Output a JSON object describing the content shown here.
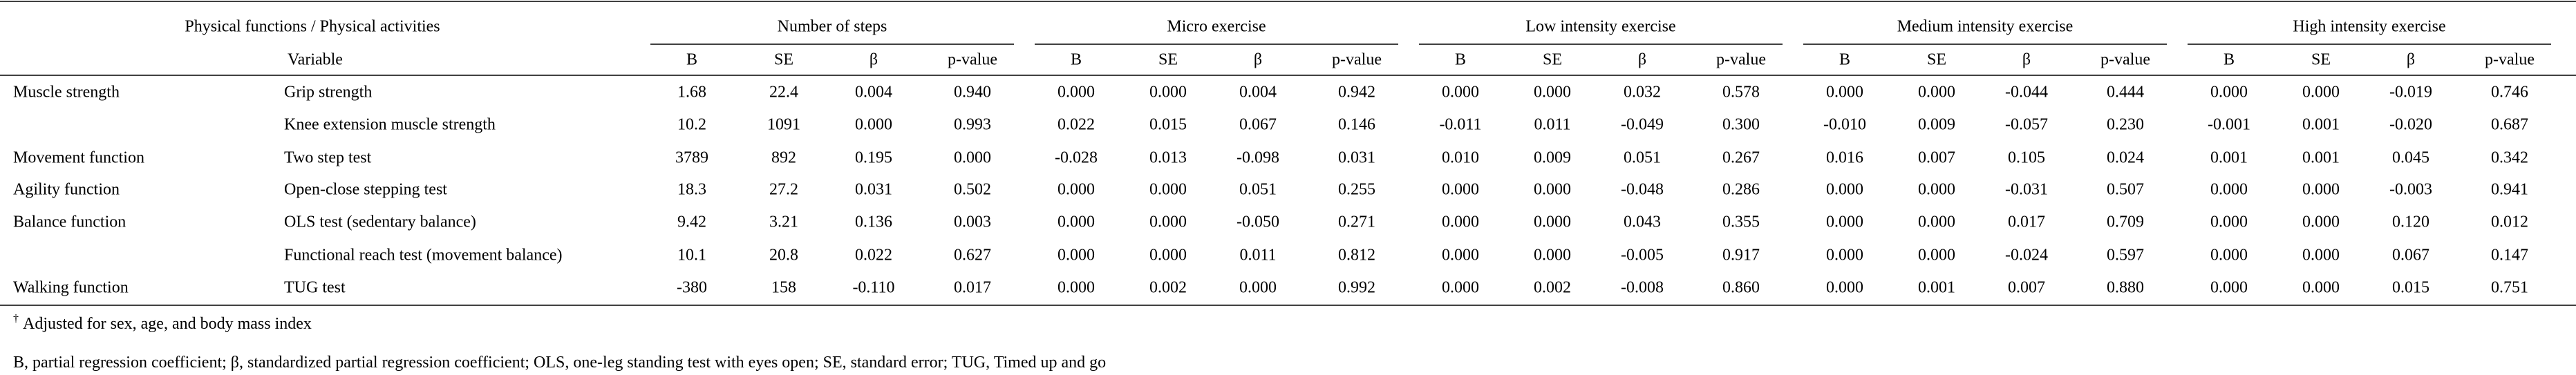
{
  "table": {
    "header": {
      "corner": "Physical functions / Physical activities",
      "variable": "Variable",
      "groups": [
        "Number of steps",
        "Micro exercise",
        "Low intensity exercise",
        "Medium intensity exercise",
        "High intensity exercise"
      ],
      "columns": [
        "B",
        "SE",
        "β",
        "p-value"
      ]
    },
    "rows": [
      {
        "group": "Muscle strength",
        "variable": "Grip strength",
        "values": [
          "1.68",
          "22.4",
          "0.004",
          "0.940",
          "0.000",
          "0.000",
          "0.004",
          "0.942",
          "0.000",
          "0.000",
          "0.032",
          "0.578",
          "0.000",
          "0.000",
          "-0.044",
          "0.444",
          "0.000",
          "0.000",
          "-0.019",
          "0.746"
        ]
      },
      {
        "variable": "Knee extension muscle strength",
        "values": [
          "10.2",
          "1091",
          "0.000",
          "0.993",
          "0.022",
          "0.015",
          "0.067",
          "0.146",
          "-0.011",
          "0.011",
          "-0.049",
          "0.300",
          "-0.010",
          "0.009",
          "-0.057",
          "0.230",
          "-0.001",
          "0.001",
          "-0.020",
          "0.687"
        ]
      },
      {
        "group": "Movement function",
        "variable": "Two step test",
        "values": [
          "3789",
          "892",
          "0.195",
          "0.000",
          "-0.028",
          "0.013",
          "-0.098",
          "0.031",
          "0.010",
          "0.009",
          "0.051",
          "0.267",
          "0.016",
          "0.007",
          "0.105",
          "0.024",
          "0.001",
          "0.001",
          "0.045",
          "0.342"
        ]
      },
      {
        "group": "Agility function",
        "variable": "Open-close stepping test",
        "values": [
          "18.3",
          "27.2",
          "0.031",
          "0.502",
          "0.000",
          "0.000",
          "0.051",
          "0.255",
          "0.000",
          "0.000",
          "-0.048",
          "0.286",
          "0.000",
          "0.000",
          "-0.031",
          "0.507",
          "0.000",
          "0.000",
          "-0.003",
          "0.941"
        ]
      },
      {
        "group": "Balance function",
        "variable": "OLS test (sedentary balance)",
        "values": [
          "9.42",
          "3.21",
          "0.136",
          "0.003",
          "0.000",
          "0.000",
          "-0.050",
          "0.271",
          "0.000",
          "0.000",
          "0.043",
          "0.355",
          "0.000",
          "0.000",
          "0.017",
          "0.709",
          "0.000",
          "0.000",
          "0.120",
          "0.012"
        ]
      },
      {
        "variable": "Functional reach test (movement balance)",
        "values": [
          "10.1",
          "20.8",
          "0.022",
          "0.627",
          "0.000",
          "0.000",
          "0.011",
          "0.812",
          "0.000",
          "0.000",
          "-0.005",
          "0.917",
          "0.000",
          "0.000",
          "-0.024",
          "0.597",
          "0.000",
          "0.000",
          "0.067",
          "0.147"
        ]
      },
      {
        "group": "Walking function",
        "variable": "TUG test",
        "values": [
          "-380",
          "158",
          "-0.110",
          "0.017",
          "0.000",
          "0.002",
          "0.000",
          "0.992",
          "0.000",
          "0.002",
          "-0.008",
          "0.860",
          "0.000",
          "0.001",
          "0.007",
          "0.880",
          "0.000",
          "0.000",
          "0.015",
          "0.751"
        ]
      }
    ],
    "footnotes": [
      {
        "mark": "†",
        "text": "Adjusted for sex, age, and body mass index"
      },
      {
        "text": "B, partial regression coefficient; β, standardized partial regression coefficient; OLS, one-leg standing test with eyes open; SE, standard error; TUG, Timed up and go"
      }
    ]
  }
}
